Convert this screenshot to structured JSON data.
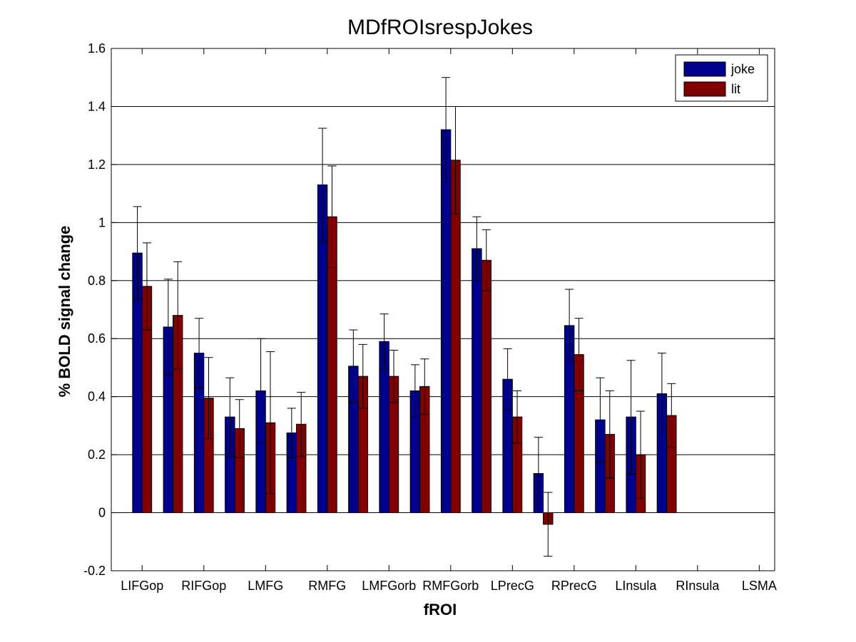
{
  "chart_data": {
    "type": "bar",
    "title": "MDfROIsrespJokes",
    "xlabel": "fROI",
    "ylabel": "% BOLD signal change",
    "ylim": [
      -0.2,
      1.6
    ],
    "yticks": [
      "-0.2",
      "0",
      "0.2",
      "0.4",
      "0.6",
      "0.8",
      "1",
      "1.2",
      "1.4",
      "1.6"
    ],
    "ytick_values": [
      -0.2,
      0,
      0.2,
      0.4,
      0.6,
      0.8,
      1.0,
      1.2,
      1.4,
      1.6
    ],
    "xtick_labels": [
      "LIFGop",
      "RIFGop",
      "LMFG",
      "RMFG",
      "LMFGorb",
      "RMFGorb",
      "LPrecG",
      "RPrecG",
      "LInsula",
      "RInsula",
      "LSMA"
    ],
    "xtick_positions": [
      1,
      3,
      5,
      7,
      9,
      11,
      13,
      15,
      17,
      19,
      21
    ],
    "xlim": [
      0,
      21.5
    ],
    "x": [
      1,
      2,
      3,
      4,
      5,
      6,
      7,
      8,
      9,
      10,
      11,
      12,
      13,
      14,
      15,
      16,
      17,
      18
    ],
    "grid": "horizontal",
    "legend_position": "top-right",
    "series": [
      {
        "name": "joke",
        "color": "#00008f",
        "values": [
          0.895,
          0.64,
          0.55,
          0.33,
          0.42,
          0.275,
          1.13,
          0.505,
          0.59,
          0.42,
          1.32,
          0.91,
          0.46,
          0.135,
          0.645,
          0.32,
          0.33,
          0.41
        ],
        "error": [
          0.16,
          0.165,
          0.12,
          0.135,
          0.18,
          0.085,
          0.195,
          0.125,
          0.095,
          0.09,
          0.18,
          0.11,
          0.105,
          0.125,
          0.125,
          0.145,
          0.195,
          0.14
        ]
      },
      {
        "name": "lit",
        "color": "#800000",
        "values": [
          0.78,
          0.68,
          0.395,
          0.29,
          0.31,
          0.305,
          1.02,
          0.47,
          0.47,
          0.435,
          1.215,
          0.87,
          0.33,
          -0.04,
          0.545,
          0.27,
          0.2,
          0.335
        ],
        "error": [
          0.15,
          0.185,
          0.14,
          0.1,
          0.245,
          0.11,
          0.175,
          0.11,
          0.09,
          0.095,
          0.185,
          0.105,
          0.09,
          0.11,
          0.125,
          0.15,
          0.15,
          0.11
        ]
      }
    ]
  }
}
